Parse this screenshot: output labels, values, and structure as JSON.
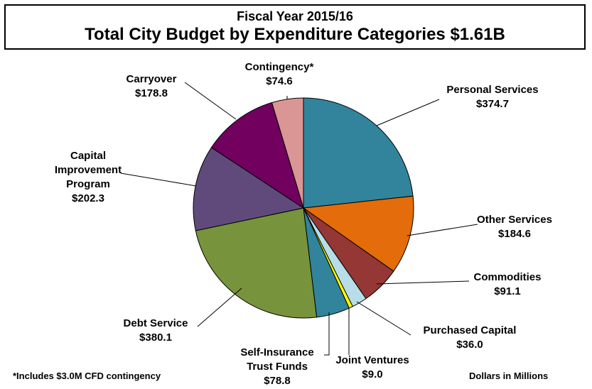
{
  "header": {
    "subtitle": "Fiscal Year 2015/16",
    "title": "Total City Budget by Expenditure Categories $1.61B"
  },
  "footnote": "*Includes $3.0M CFD contingency",
  "units_note": "Dollars in Millions",
  "chart_data": {
    "type": "pie",
    "title": "Total City Budget by Expenditure Categories $1.61B",
    "subtitle": "Fiscal Year 2015/16",
    "units": "Dollars in Millions",
    "slices": [
      {
        "label": "Personal Services",
        "value": 374.7,
        "value_label": "$374.7",
        "color": "#31849B"
      },
      {
        "label": "Other Services",
        "value": 184.6,
        "value_label": "$184.6",
        "color": "#E46C0A"
      },
      {
        "label": "Commodities",
        "value": 91.1,
        "value_label": "$91.1",
        "color": "#953735"
      },
      {
        "label": "Purchased Capital",
        "value": 36.0,
        "value_label": "$36.0",
        "color": "#B7DEE8"
      },
      {
        "label": "Joint Ventures",
        "value": 9.0,
        "value_label": "$9.0",
        "color": "#FFFF00"
      },
      {
        "label": "Self-Insurance Trust Funds",
        "value": 78.8,
        "value_label": "$78.8",
        "color": "#31849B"
      },
      {
        "label": "Debt Service",
        "value": 380.1,
        "value_label": "$380.1",
        "color": "#77933C"
      },
      {
        "label": "Capital Improvement Program",
        "value": 202.3,
        "value_label": "$202.3",
        "color": "#604A7B"
      },
      {
        "label": "Carryover",
        "value": 178.8,
        "value_label": "$178.8",
        "color": "#71005F"
      },
      {
        "label": "Contingency*",
        "value": 74.6,
        "value_label": "$74.6",
        "color": "#D99694"
      }
    ]
  }
}
